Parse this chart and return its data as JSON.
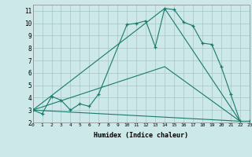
{
  "xlabel": "Humidex (Indice chaleur)",
  "background_color": "#cce8e8",
  "grid_color": "#aacccc",
  "line_color": "#1a7a6a",
  "line1_x": [
    0,
    1,
    2,
    3,
    4,
    5,
    6,
    7,
    10,
    11,
    12,
    13,
    14,
    15,
    16,
    17,
    18,
    19,
    20,
    21,
    22,
    23
  ],
  "line1_y": [
    3.0,
    2.7,
    4.1,
    3.8,
    3.0,
    3.5,
    3.3,
    4.3,
    9.9,
    10.0,
    10.2,
    8.1,
    11.2,
    11.1,
    10.1,
    9.8,
    8.4,
    8.3,
    6.5,
    4.3,
    2.1,
    2.1
  ],
  "line2_x": [
    0,
    14,
    22
  ],
  "line2_y": [
    3.0,
    11.2,
    2.1
  ],
  "line3_x": [
    0,
    14,
    22
  ],
  "line3_y": [
    3.0,
    6.5,
    2.1
  ],
  "line4_x": [
    0,
    22
  ],
  "line4_y": [
    3.0,
    2.1
  ],
  "xlim": [
    0,
    23
  ],
  "ylim": [
    2.0,
    11.5
  ],
  "yticks": [
    2,
    3,
    4,
    5,
    6,
    7,
    8,
    9,
    10,
    11
  ],
  "xticks": [
    0,
    1,
    2,
    3,
    4,
    5,
    6,
    7,
    8,
    9,
    10,
    11,
    12,
    13,
    14,
    15,
    16,
    17,
    18,
    19,
    20,
    21,
    22,
    23
  ]
}
